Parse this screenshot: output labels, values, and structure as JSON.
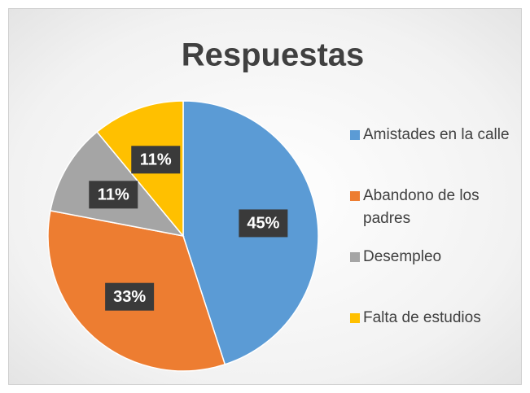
{
  "chart_data": {
    "type": "pie",
    "title": "Respuestas",
    "categories": [
      "Amistades en la calle",
      "Abandono de los padres",
      "Desempleo",
      "Falta de estudios"
    ],
    "values": [
      45,
      33,
      11,
      11
    ],
    "value_labels": [
      "45%",
      "33%",
      "11%",
      "11%"
    ],
    "colors": [
      "#5B9BD5",
      "#ED7D31",
      "#A5A5A5",
      "#FFC000"
    ],
    "legend": "right"
  }
}
